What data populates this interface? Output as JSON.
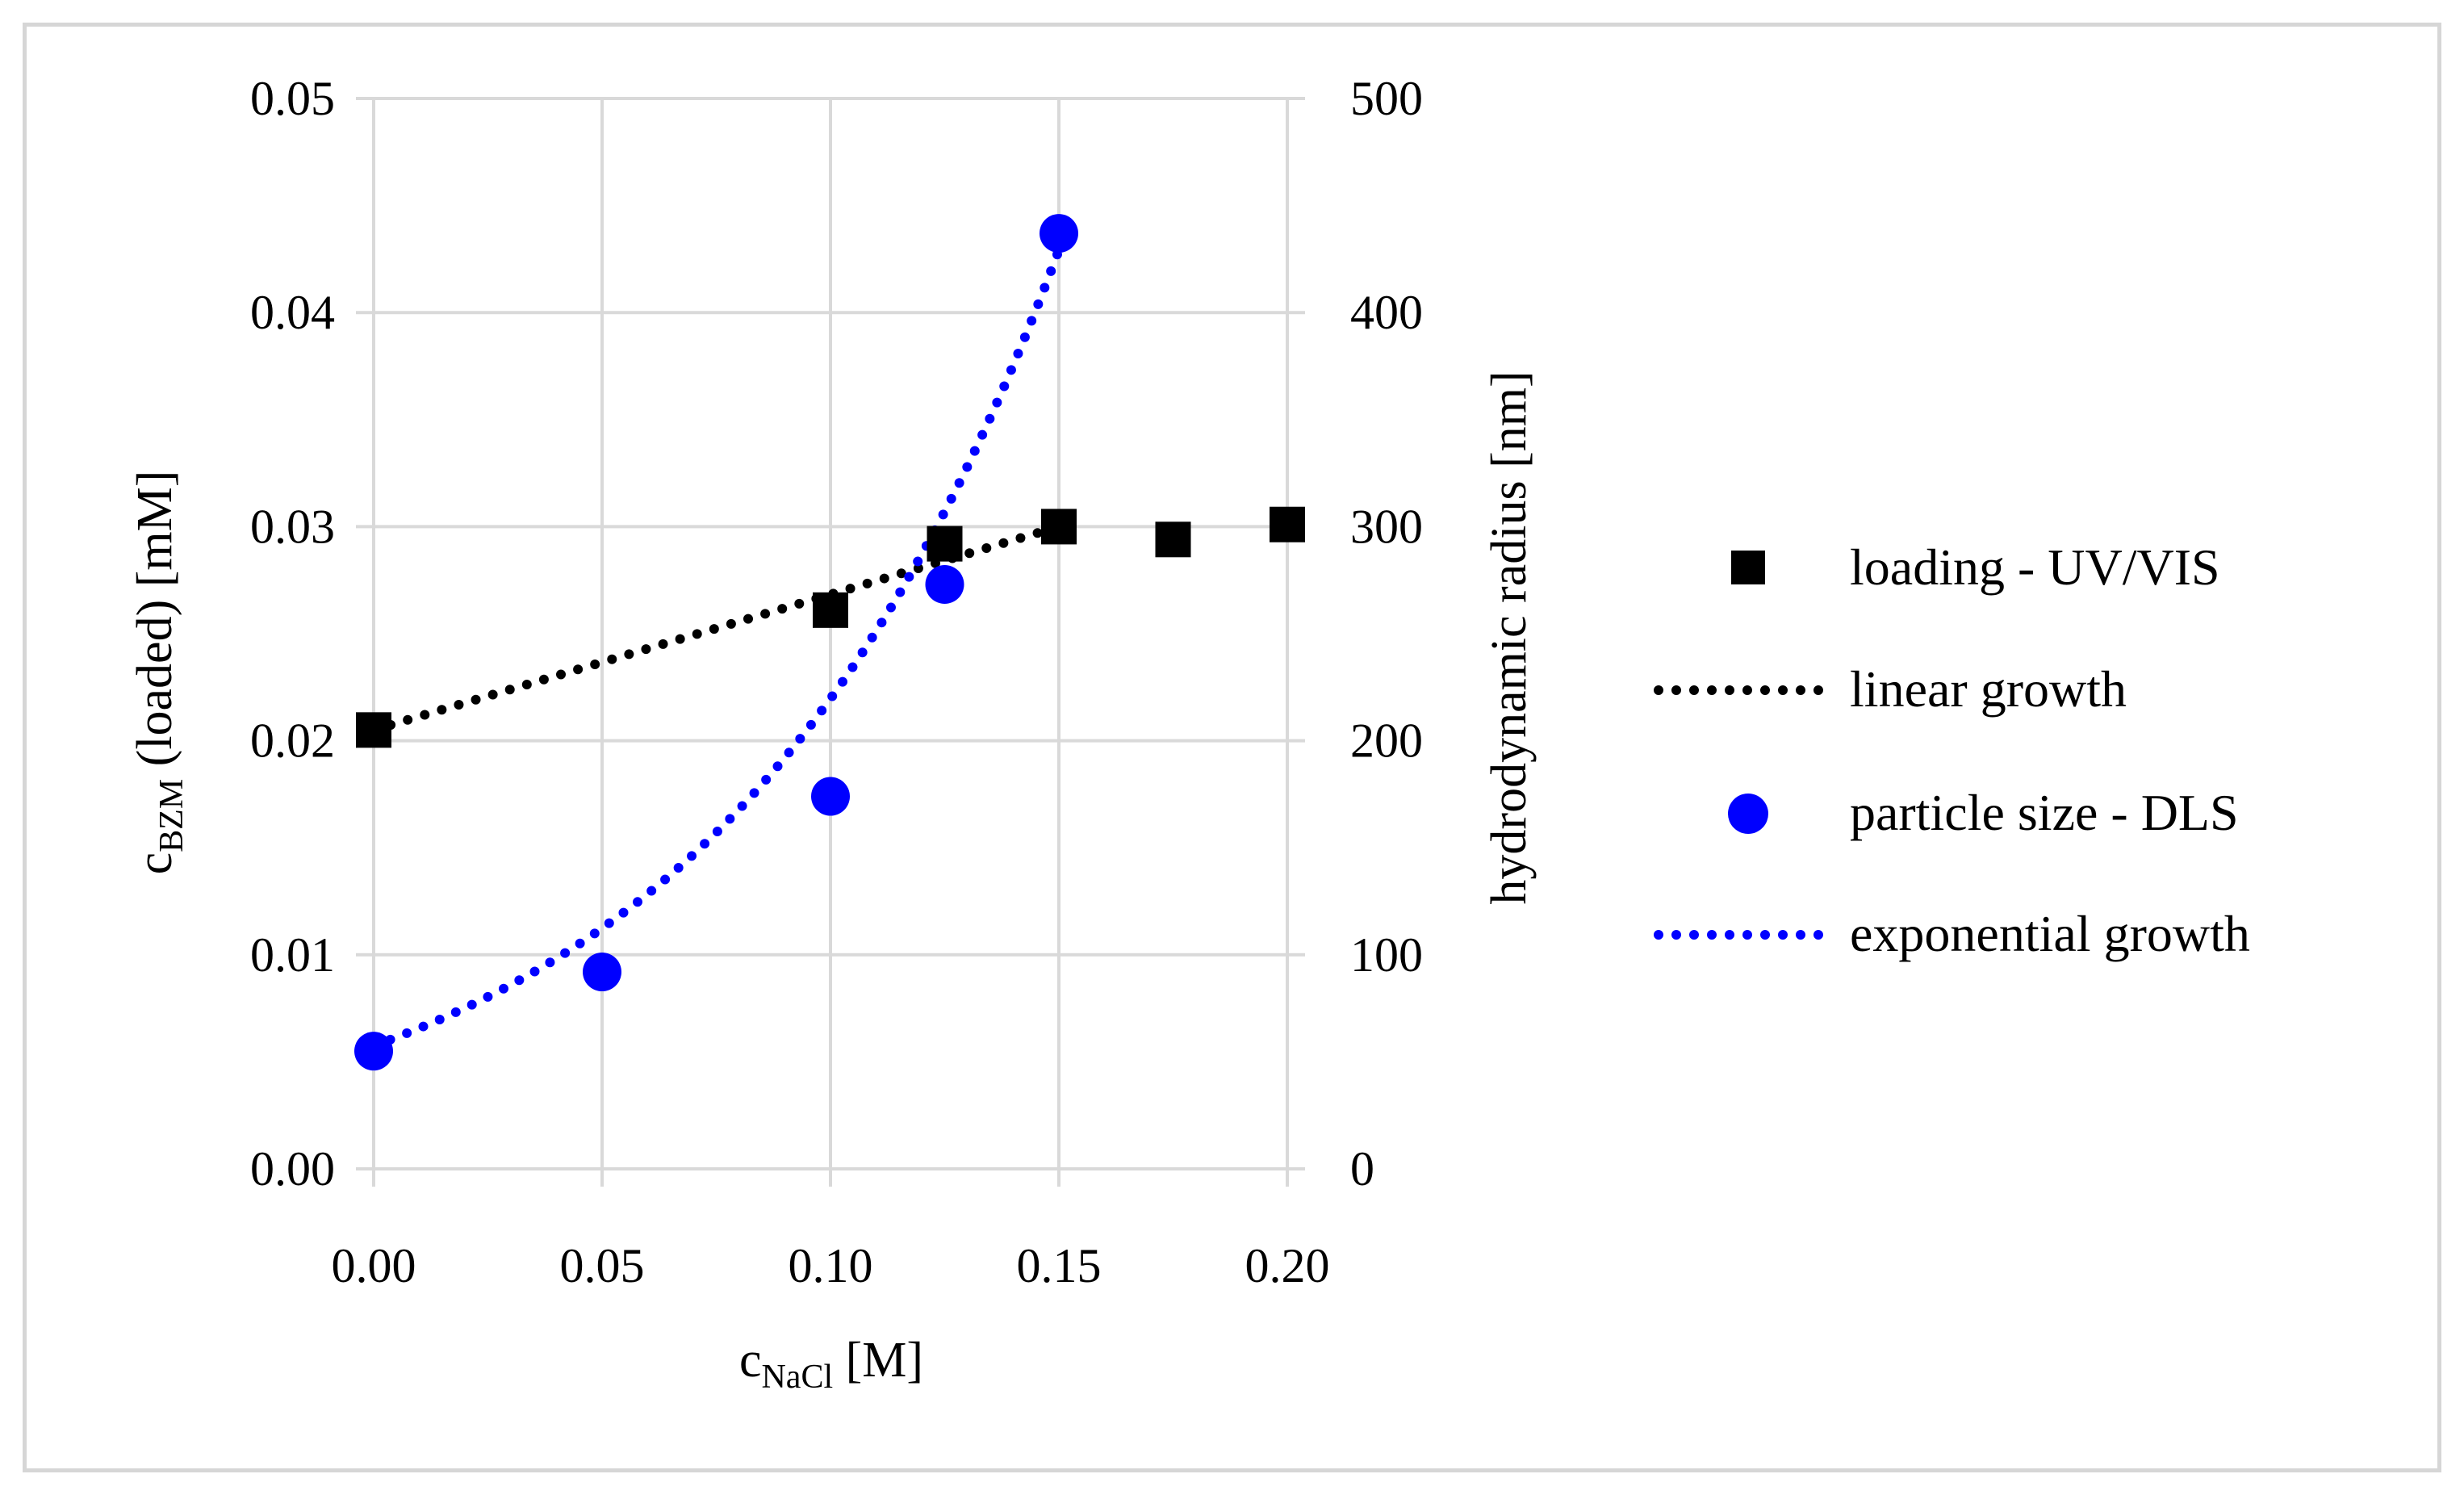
{
  "chart_data": {
    "type": "scatter",
    "title": "",
    "x_axis": {
      "label_main": "c",
      "label_sub": "NaCl",
      "label_unit": " [M]",
      "range": [
        0,
        0.2
      ],
      "ticks": [
        0,
        0.05,
        0.1,
        0.15,
        0.2
      ],
      "tick_labels": [
        "0.00",
        "0.05",
        "0.10",
        "0.15",
        "0.20"
      ]
    },
    "y_axis_left": {
      "label_main": "c",
      "label_sub": "BZM",
      "label_rest": " (loaded) [mM]",
      "range": [
        0,
        0.05
      ],
      "ticks": [
        0,
        0.01,
        0.02,
        0.03,
        0.04,
        0.05
      ],
      "tick_labels": [
        "0.00",
        "0.01",
        "0.02",
        "0.03",
        "0.04",
        "0.05"
      ]
    },
    "y_axis_right": {
      "label": "hydrodynamic radius [nm]",
      "range": [
        0,
        500
      ],
      "ticks": [
        0,
        100,
        200,
        300,
        400,
        500
      ],
      "tick_labels": [
        "0",
        "100",
        "200",
        "300",
        "400",
        "500"
      ]
    },
    "gridlines": "horizontal and vertical major",
    "legend_position": "right",
    "series": [
      {
        "name": "loading - UV/VIS",
        "kind": "marker",
        "marker": "square",
        "axis": "left",
        "color": "#000000",
        "x": [
          0,
          0.1,
          0.125,
          0.15,
          0.175,
          0.2
        ],
        "y": [
          0.0205,
          0.0261,
          0.0292,
          0.03,
          0.0294,
          0.0301
        ]
      },
      {
        "name": "linear growth",
        "kind": "trendline",
        "style": "dotted",
        "axis": "left",
        "color": "#000000",
        "function": "linear",
        "x_range": [
          0,
          0.15
        ],
        "y_endpoints": [
          0.0205,
          0.03
        ]
      },
      {
        "name": "particle size - DLS",
        "kind": "marker",
        "marker": "circle",
        "axis": "right",
        "color": "#0000ff",
        "x": [
          0,
          0.05,
          0.1,
          0.125,
          0.15
        ],
        "y": [
          55,
          92,
          174,
          273,
          437
        ]
      },
      {
        "name": "exponential growth",
        "kind": "trendline",
        "style": "dotted",
        "axis": "right",
        "color": "#0000ff",
        "function": "exponential",
        "coefficients": {
          "a": 57.5,
          "b": 13.4
        },
        "x_range": [
          0,
          0.15
        ]
      }
    ]
  }
}
